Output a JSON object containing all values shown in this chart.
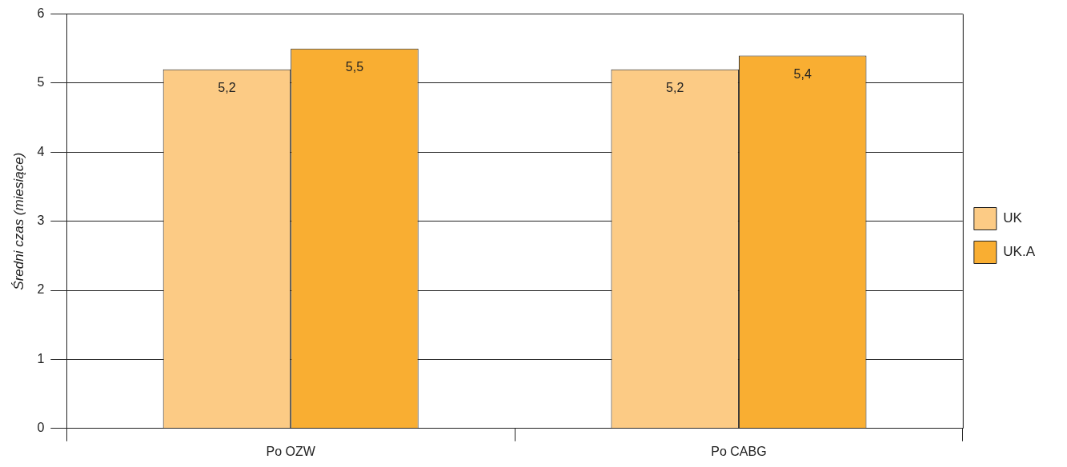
{
  "chart_data": {
    "type": "bar",
    "ylabel": "Średni czas (miesiące)",
    "categories": [
      "Po OZW",
      "Po CABG"
    ],
    "series": [
      {
        "name": "UK",
        "color": "#fccb85",
        "values": [
          5.2,
          5.2
        ],
        "value_labels": [
          "5,2",
          "5,2"
        ]
      },
      {
        "name": "UK.A",
        "color": "#f9ae32",
        "values": [
          5.5,
          5.4
        ],
        "value_labels": [
          "5,5",
          "5,4"
        ]
      }
    ],
    "ylim": [
      0,
      6
    ],
    "yticks": [
      0,
      1,
      2,
      3,
      4,
      5,
      6
    ],
    "grid": "y",
    "legend": "right"
  }
}
